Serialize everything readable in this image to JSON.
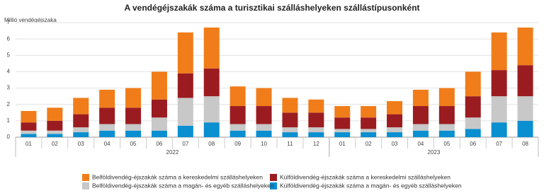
{
  "chart_data": {
    "type": "stacked_bar",
    "title": "A vendégéjszakák száma a turisztikai szálláshelyeken szállástípusonként",
    "y_label": "Millió vendégéjszaka",
    "groups": [
      {
        "label": "2022",
        "categories": [
          "01",
          "02",
          "03",
          "04",
          "05",
          "06",
          "07",
          "08",
          "09",
          "10",
          "11",
          "12"
        ]
      },
      {
        "label": "2023",
        "categories": [
          "01",
          "02",
          "03",
          "04",
          "05",
          "06",
          "07",
          "08"
        ]
      }
    ],
    "series": [
      {
        "name": "Külföldivendég-éjszakák száma a magán- és egyéb szálláshelyeken",
        "color": "#0a8fd1",
        "values": [
          0.2,
          0.2,
          0.3,
          0.4,
          0.4,
          0.4,
          0.7,
          0.9,
          0.4,
          0.4,
          0.3,
          0.3,
          0.3,
          0.3,
          0.3,
          0.4,
          0.4,
          0.5,
          0.9,
          1.0
        ]
      },
      {
        "name": "Belföldivendég-éjszakák száma a magán- és egyéb szálláshelyeken",
        "color": "#c8c8c8",
        "values": [
          0.2,
          0.2,
          0.3,
          0.4,
          0.4,
          0.8,
          1.7,
          1.6,
          0.4,
          0.4,
          0.3,
          0.3,
          0.2,
          0.2,
          0.3,
          0.4,
          0.4,
          0.7,
          1.6,
          1.5
        ]
      },
      {
        "name": "Külföldivendég-éjszakák száma a kereskedelmi szálláshelyeken",
        "color": "#9b1c20",
        "values": [
          0.5,
          0.6,
          0.8,
          1.0,
          1.0,
          1.1,
          1.5,
          1.7,
          1.1,
          1.1,
          0.9,
          0.9,
          0.7,
          0.7,
          0.8,
          1.1,
          1.1,
          1.3,
          1.6,
          1.9
        ]
      },
      {
        "name": "Belföldivendég-éjszakák száma a kereskedelmi szálláshelyeken",
        "color": "#f07d1a",
        "values": [
          0.7,
          0.8,
          1.0,
          1.1,
          1.2,
          1.7,
          2.5,
          2.5,
          1.2,
          1.1,
          0.9,
          0.8,
          0.7,
          0.7,
          0.8,
          1.0,
          1.1,
          1.5,
          2.3,
          2.3
        ]
      }
    ],
    "ylim": [
      0,
      7
    ],
    "yticks": [
      0,
      1,
      2,
      3,
      4,
      5,
      6,
      7
    ],
    "grid": true
  }
}
